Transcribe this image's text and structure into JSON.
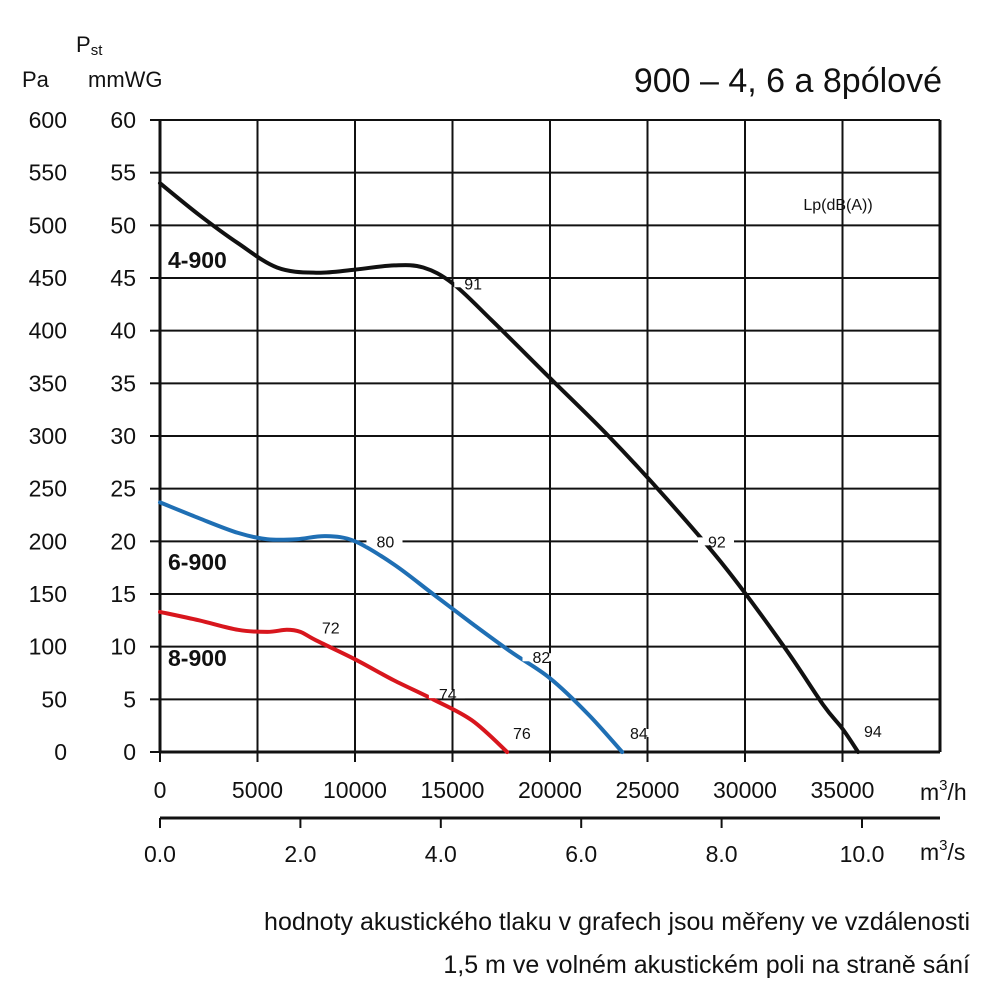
{
  "title": "900 – 4, 6 a 8pólové",
  "y_unit_left": "Pa",
  "y_param_main": "P",
  "y_param_sub": "st",
  "y_unit_right": "mmWG",
  "x_unit_top_base": "m",
  "x_unit_top_exp": "3",
  "x_unit_top_den": "/h",
  "x_unit_bottom_base": "m",
  "x_unit_bottom_exp": "3",
  "x_unit_bottom_den": "/s",
  "noise_label": "Lp(dB(A))",
  "caption_line1": "hodnoty akustického tlaku v grafech jsou měřeny ve vzdálenosti",
  "caption_line2": "1,5 m ve volném akustickém poli na straně sání",
  "chart_data": {
    "type": "line",
    "xlim": [
      0,
      40000
    ],
    "ylim": [
      0,
      600
    ],
    "grid": true,
    "x_ticks": [
      0,
      5000,
      10000,
      15000,
      20000,
      25000,
      30000,
      35000
    ],
    "x_tick_labels": [
      "0",
      "5000",
      "10000",
      "15000",
      "20000",
      "25000",
      "30000",
      "35000"
    ],
    "x2_ticks": [
      0,
      7200,
      14400,
      21600,
      28800,
      36000
    ],
    "x2_tick_labels": [
      "0.0",
      "2.0",
      "4.0",
      "6.0",
      "8.0",
      "10.0"
    ],
    "y_ticks": [
      0,
      50,
      100,
      150,
      200,
      250,
      300,
      350,
      400,
      450,
      500,
      550,
      600
    ],
    "y_tick_labels": [
      "0",
      "50",
      "100",
      "150",
      "200",
      "250",
      "300",
      "350",
      "400",
      "450",
      "500",
      "550",
      "600"
    ],
    "y2_tick_labels": [
      "0",
      "5",
      "10",
      "15",
      "20",
      "25",
      "30",
      "35",
      "40",
      "45",
      "50",
      "55",
      "60"
    ],
    "series": [
      {
        "name": "4-900",
        "color": "#111111",
        "x": [
          0,
          2000,
          4000,
          6000,
          8000,
          10000,
          12000,
          13500,
          15000,
          17000,
          20000,
          23000,
          26000,
          29000,
          32000,
          34000,
          35000,
          35800
        ],
        "y": [
          540,
          510,
          483,
          460,
          455,
          458,
          462,
          460,
          445,
          410,
          355,
          300,
          240,
          175,
          100,
          45,
          22,
          0
        ],
        "noise": [
          {
            "x": 15500,
            "y": 445,
            "label": "91"
          },
          {
            "x": 28000,
            "y": 200,
            "label": "92"
          },
          {
            "x": 36000,
            "y": 20,
            "label": "94"
          }
        ]
      },
      {
        "name": "6-900",
        "color": "#1f6fb4",
        "x": [
          0,
          2000,
          4000,
          5500,
          7000,
          8500,
          10000,
          12000,
          14000,
          16000,
          18000,
          20000,
          22000,
          23700
        ],
        "y": [
          237,
          222,
          208,
          202,
          202,
          205,
          200,
          178,
          150,
          122,
          95,
          70,
          35,
          0
        ],
        "noise": [
          {
            "x": 11000,
            "y": 200,
            "label": "80"
          },
          {
            "x": 19000,
            "y": 90,
            "label": "82"
          },
          {
            "x": 24000,
            "y": 18,
            "label": "84"
          }
        ]
      },
      {
        "name": "8-900",
        "color": "#d8161d",
        "x": [
          0,
          2000,
          4000,
          5500,
          6500,
          7200,
          8000,
          10000,
          12000,
          14000,
          16000,
          17800
        ],
        "y": [
          133,
          125,
          116,
          114,
          116,
          114,
          106,
          88,
          68,
          50,
          30,
          0
        ],
        "noise": [
          {
            "x": 8200,
            "y": 118,
            "label": "72"
          },
          {
            "x": 14200,
            "y": 55,
            "label": "74"
          },
          {
            "x": 18000,
            "y": 18,
            "label": "76"
          }
        ]
      }
    ]
  }
}
